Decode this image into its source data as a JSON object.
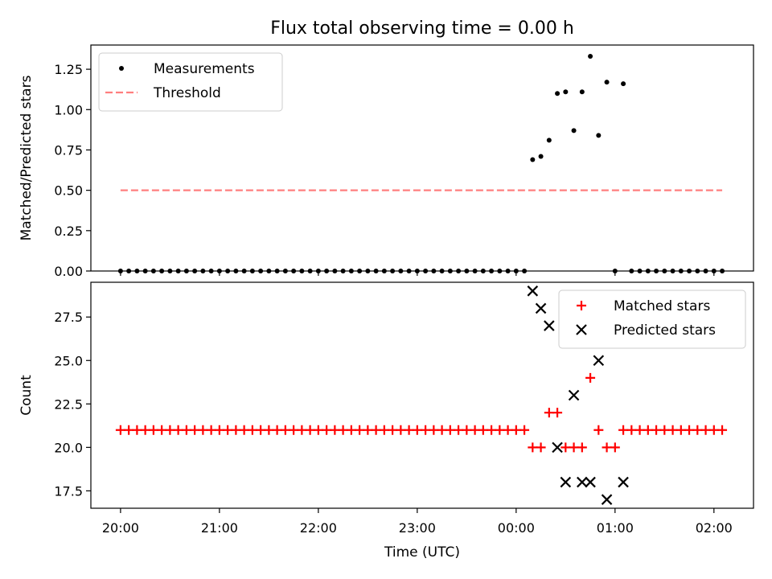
{
  "figure": {
    "title": "Flux total observing time = 0.00 h",
    "xlabel": "Time (UTC)"
  },
  "chart_data": [
    {
      "type": "scatter",
      "ylabel": "Matched/Predicted stars",
      "ylim": [
        0,
        1.4
      ],
      "yticks": [
        "0.00",
        "0.25",
        "0.50",
        "0.75",
        "1.00",
        "1.25"
      ],
      "xlim_minutes": [
        -18,
        384
      ],
      "legend": "top-left",
      "series": [
        {
          "name": "Measurements",
          "kind": "dot",
          "color": "#000000",
          "points": [
            {
              "t": "20:00",
              "y": 0
            },
            {
              "t": "20:05",
              "y": 0
            },
            {
              "t": "20:10",
              "y": 0
            },
            {
              "t": "20:15",
              "y": 0
            },
            {
              "t": "20:20",
              "y": 0
            },
            {
              "t": "20:25",
              "y": 0
            },
            {
              "t": "20:30",
              "y": 0
            },
            {
              "t": "20:35",
              "y": 0
            },
            {
              "t": "20:40",
              "y": 0
            },
            {
              "t": "20:45",
              "y": 0
            },
            {
              "t": "20:50",
              "y": 0
            },
            {
              "t": "20:55",
              "y": 0
            },
            {
              "t": "21:00",
              "y": 0
            },
            {
              "t": "21:05",
              "y": 0
            },
            {
              "t": "21:10",
              "y": 0
            },
            {
              "t": "21:15",
              "y": 0
            },
            {
              "t": "21:20",
              "y": 0
            },
            {
              "t": "21:25",
              "y": 0
            },
            {
              "t": "21:30",
              "y": 0
            },
            {
              "t": "21:35",
              "y": 0
            },
            {
              "t": "21:40",
              "y": 0
            },
            {
              "t": "21:45",
              "y": 0
            },
            {
              "t": "21:50",
              "y": 0
            },
            {
              "t": "21:55",
              "y": 0
            },
            {
              "t": "22:00",
              "y": 0
            },
            {
              "t": "22:05",
              "y": 0
            },
            {
              "t": "22:10",
              "y": 0
            },
            {
              "t": "22:15",
              "y": 0
            },
            {
              "t": "22:20",
              "y": 0
            },
            {
              "t": "22:25",
              "y": 0
            },
            {
              "t": "22:30",
              "y": 0
            },
            {
              "t": "22:35",
              "y": 0
            },
            {
              "t": "22:40",
              "y": 0
            },
            {
              "t": "22:45",
              "y": 0
            },
            {
              "t": "22:50",
              "y": 0
            },
            {
              "t": "22:55",
              "y": 0
            },
            {
              "t": "23:00",
              "y": 0
            },
            {
              "t": "23:05",
              "y": 0
            },
            {
              "t": "23:10",
              "y": 0
            },
            {
              "t": "23:15",
              "y": 0
            },
            {
              "t": "23:20",
              "y": 0
            },
            {
              "t": "23:25",
              "y": 0
            },
            {
              "t": "23:30",
              "y": 0
            },
            {
              "t": "23:35",
              "y": 0
            },
            {
              "t": "23:40",
              "y": 0
            },
            {
              "t": "23:45",
              "y": 0
            },
            {
              "t": "23:50",
              "y": 0
            },
            {
              "t": "23:55",
              "y": 0
            },
            {
              "t": "00:00",
              "y": 0
            },
            {
              "t": "00:05",
              "y": 0
            },
            {
              "t": "00:10",
              "y": 0.69
            },
            {
              "t": "00:15",
              "y": 0.71
            },
            {
              "t": "00:20",
              "y": 0.81
            },
            {
              "t": "00:25",
              "y": 1.1
            },
            {
              "t": "00:30",
              "y": 1.11
            },
            {
              "t": "00:35",
              "y": 0.87
            },
            {
              "t": "00:40",
              "y": 1.11
            },
            {
              "t": "00:45",
              "y": 1.33
            },
            {
              "t": "00:50",
              "y": 0.84
            },
            {
              "t": "00:55",
              "y": 1.17
            },
            {
              "t": "01:00",
              "y": 0
            },
            {
              "t": "01:05",
              "y": 1.16
            },
            {
              "t": "01:10",
              "y": 0
            },
            {
              "t": "01:15",
              "y": 0
            },
            {
              "t": "01:20",
              "y": 0
            },
            {
              "t": "01:25",
              "y": 0
            },
            {
              "t": "01:30",
              "y": 0
            },
            {
              "t": "01:35",
              "y": 0
            },
            {
              "t": "01:40",
              "y": 0
            },
            {
              "t": "01:45",
              "y": 0
            },
            {
              "t": "01:50",
              "y": 0
            },
            {
              "t": "01:55",
              "y": 0
            },
            {
              "t": "02:00",
              "y": 0
            },
            {
              "t": "02:05",
              "y": 0
            }
          ]
        },
        {
          "name": "Threshold",
          "kind": "dashed-line",
          "color": "#ff7f7f",
          "points": [
            {
              "t": "20:00",
              "y": 0.5
            },
            {
              "t": "02:05",
              "y": 0.5
            }
          ]
        }
      ]
    },
    {
      "type": "scatter",
      "ylabel": "Count",
      "ylim": [
        16.5,
        29.5
      ],
      "yticks": [
        "17.5",
        "20.0",
        "22.5",
        "25.0",
        "27.5"
      ],
      "xlim_minutes": [
        -18,
        384
      ],
      "xticks": [
        "20:00",
        "21:00",
        "22:00",
        "23:00",
        "00:00",
        "01:00",
        "02:00"
      ],
      "legend": "top-right",
      "series": [
        {
          "name": "Matched stars",
          "kind": "plus",
          "color": "#ff0000",
          "points": [
            {
              "t": "20:00",
              "y": 21
            },
            {
              "t": "20:05",
              "y": 21
            },
            {
              "t": "20:10",
              "y": 21
            },
            {
              "t": "20:15",
              "y": 21
            },
            {
              "t": "20:20",
              "y": 21
            },
            {
              "t": "20:25",
              "y": 21
            },
            {
              "t": "20:30",
              "y": 21
            },
            {
              "t": "20:35",
              "y": 21
            },
            {
              "t": "20:40",
              "y": 21
            },
            {
              "t": "20:45",
              "y": 21
            },
            {
              "t": "20:50",
              "y": 21
            },
            {
              "t": "20:55",
              "y": 21
            },
            {
              "t": "21:00",
              "y": 21
            },
            {
              "t": "21:05",
              "y": 21
            },
            {
              "t": "21:10",
              "y": 21
            },
            {
              "t": "21:15",
              "y": 21
            },
            {
              "t": "21:20",
              "y": 21
            },
            {
              "t": "21:25",
              "y": 21
            },
            {
              "t": "21:30",
              "y": 21
            },
            {
              "t": "21:35",
              "y": 21
            },
            {
              "t": "21:40",
              "y": 21
            },
            {
              "t": "21:45",
              "y": 21
            },
            {
              "t": "21:50",
              "y": 21
            },
            {
              "t": "21:55",
              "y": 21
            },
            {
              "t": "22:00",
              "y": 21
            },
            {
              "t": "22:05",
              "y": 21
            },
            {
              "t": "22:10",
              "y": 21
            },
            {
              "t": "22:15",
              "y": 21
            },
            {
              "t": "22:20",
              "y": 21
            },
            {
              "t": "22:25",
              "y": 21
            },
            {
              "t": "22:30",
              "y": 21
            },
            {
              "t": "22:35",
              "y": 21
            },
            {
              "t": "22:40",
              "y": 21
            },
            {
              "t": "22:45",
              "y": 21
            },
            {
              "t": "22:50",
              "y": 21
            },
            {
              "t": "22:55",
              "y": 21
            },
            {
              "t": "23:00",
              "y": 21
            },
            {
              "t": "23:05",
              "y": 21
            },
            {
              "t": "23:10",
              "y": 21
            },
            {
              "t": "23:15",
              "y": 21
            },
            {
              "t": "23:20",
              "y": 21
            },
            {
              "t": "23:25",
              "y": 21
            },
            {
              "t": "23:30",
              "y": 21
            },
            {
              "t": "23:35",
              "y": 21
            },
            {
              "t": "23:40",
              "y": 21
            },
            {
              "t": "23:45",
              "y": 21
            },
            {
              "t": "23:50",
              "y": 21
            },
            {
              "t": "23:55",
              "y": 21
            },
            {
              "t": "00:00",
              "y": 21
            },
            {
              "t": "00:05",
              "y": 21
            },
            {
              "t": "00:10",
              "y": 20
            },
            {
              "t": "00:15",
              "y": 20
            },
            {
              "t": "00:20",
              "y": 22
            },
            {
              "t": "00:25",
              "y": 22
            },
            {
              "t": "00:30",
              "y": 20
            },
            {
              "t": "00:35",
              "y": 20
            },
            {
              "t": "00:40",
              "y": 20
            },
            {
              "t": "00:45",
              "y": 24
            },
            {
              "t": "00:50",
              "y": 21
            },
            {
              "t": "00:55",
              "y": 20
            },
            {
              "t": "01:00",
              "y": 20
            },
            {
              "t": "01:05",
              "y": 21
            },
            {
              "t": "01:10",
              "y": 21
            },
            {
              "t": "01:15",
              "y": 21
            },
            {
              "t": "01:20",
              "y": 21
            },
            {
              "t": "01:25",
              "y": 21
            },
            {
              "t": "01:30",
              "y": 21
            },
            {
              "t": "01:35",
              "y": 21
            },
            {
              "t": "01:40",
              "y": 21
            },
            {
              "t": "01:45",
              "y": 21
            },
            {
              "t": "01:50",
              "y": 21
            },
            {
              "t": "01:55",
              "y": 21
            },
            {
              "t": "02:00",
              "y": 21
            },
            {
              "t": "02:05",
              "y": 21
            }
          ]
        },
        {
          "name": "Predicted stars",
          "kind": "x",
          "color": "#000000",
          "points": [
            {
              "t": "00:10",
              "y": 29
            },
            {
              "t": "00:15",
              "y": 28
            },
            {
              "t": "00:20",
              "y": 27
            },
            {
              "t": "00:25",
              "y": 20
            },
            {
              "t": "00:30",
              "y": 18
            },
            {
              "t": "00:35",
              "y": 23
            },
            {
              "t": "00:40",
              "y": 18
            },
            {
              "t": "00:45",
              "y": 18
            },
            {
              "t": "00:50",
              "y": 25
            },
            {
              "t": "00:55",
              "y": 17
            },
            {
              "t": "01:05",
              "y": 18
            }
          ]
        }
      ]
    }
  ]
}
